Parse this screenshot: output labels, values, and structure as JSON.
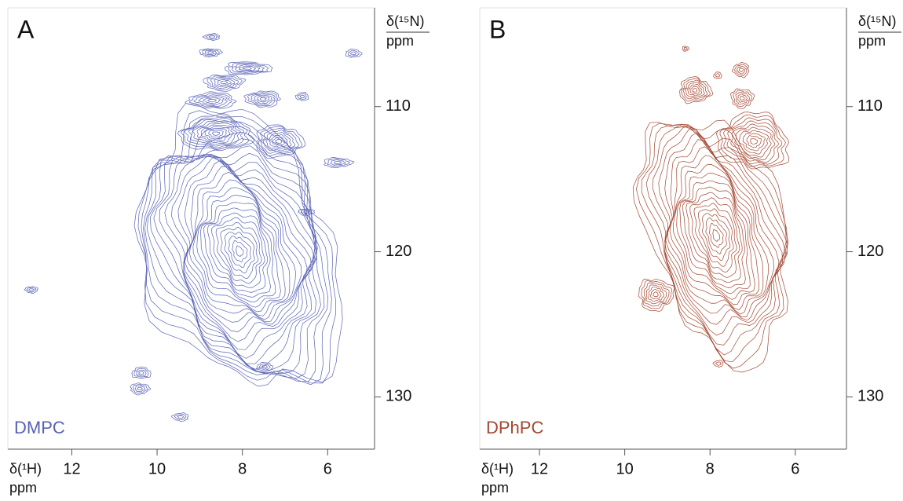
{
  "chart_data": [
    {
      "type": "contour",
      "panel_label": "A",
      "sample_label": "DMPC",
      "color": "#5862b4",
      "x_label": "δ(¹H)",
      "x_unit": "ppm",
      "y_label": "δ(¹⁵N)",
      "y_unit": "ppm",
      "xlim": [
        13.5,
        4.9
      ],
      "xticks": [
        12,
        10,
        8,
        6
      ],
      "ylim": [
        103.2,
        133.6
      ],
      "yticks": [
        110,
        120,
        130
      ]
    },
    {
      "type": "contour",
      "panel_label": "B",
      "sample_label": "DPhPC",
      "color": "#a3452f",
      "x_label": "δ(¹H)",
      "x_unit": "ppm",
      "y_label": "δ(¹⁵N)",
      "y_unit": "ppm",
      "xlim": [
        13.4,
        4.8
      ],
      "xticks": [
        12,
        10,
        8,
        6
      ],
      "ylim": [
        103.2,
        133.6
      ],
      "yticks": [
        110,
        120,
        130
      ]
    }
  ]
}
